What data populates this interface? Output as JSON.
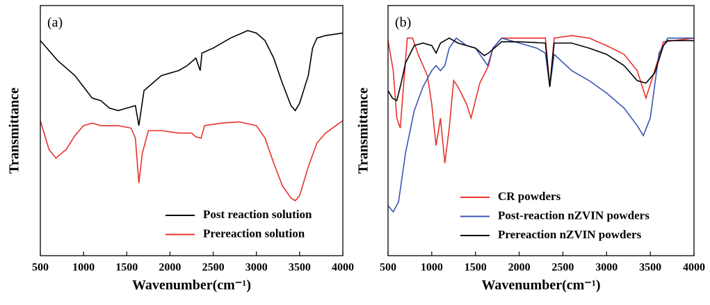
{
  "chart_data": [
    {
      "type": "line",
      "annotation": "(a)",
      "xlabel": "Wavenumber(cm⁻¹)",
      "ylabel": "Transmittance",
      "xlim": [
        500,
        4000
      ],
      "xticks": [
        500,
        1000,
        1500,
        2000,
        2500,
        3000,
        3500,
        4000
      ],
      "ylim": [
        0,
        100
      ],
      "legend": "lower right",
      "series": [
        {
          "name": "Post reaction solution",
          "color": "#000000",
          "x": [
            500,
            700,
            900,
            1000,
            1100,
            1200,
            1300,
            1400,
            1500,
            1600,
            1640,
            1700,
            1800,
            1900,
            2000,
            2100,
            2200,
            2300,
            2350,
            2370,
            2500,
            2700,
            2900,
            3000,
            3100,
            3200,
            3300,
            3400,
            3450,
            3500,
            3600,
            3650,
            3700,
            3800,
            4000
          ],
          "values": [
            86,
            78,
            72,
            67.5,
            63,
            62,
            59,
            58,
            59,
            60,
            52,
            66,
            69,
            72,
            73,
            74,
            76,
            79,
            74,
            81,
            83,
            87,
            90,
            89,
            86,
            79,
            69,
            60,
            58,
            61,
            72,
            83,
            87,
            88,
            89
          ]
        },
        {
          "name": "Prereaction solution",
          "color": "#e8312a",
          "x": [
            500,
            600,
            680,
            800,
            900,
            1000,
            1100,
            1200,
            1400,
            1550,
            1600,
            1640,
            1680,
            1750,
            1900,
            2100,
            2250,
            2300,
            2360,
            2400,
            2600,
            2800,
            3000,
            3100,
            3200,
            3300,
            3400,
            3450,
            3500,
            3600,
            3700,
            3800,
            4000
          ],
          "values": [
            54,
            42.5,
            39,
            42.5,
            48,
            52,
            53,
            52,
            52,
            51,
            47,
            29,
            41,
            50,
            50,
            49,
            49,
            47.5,
            47,
            52,
            53,
            53.5,
            52,
            47,
            37,
            28,
            23,
            22,
            24,
            35.5,
            45,
            49,
            54
          ]
        }
      ]
    },
    {
      "type": "line",
      "annotation": "(b)",
      "xlabel": "Wavenumber(cm⁻¹)",
      "ylabel": "Transmittance",
      "xlim": [
        500,
        4000
      ],
      "xticks": [
        500,
        1000,
        1500,
        2000,
        2500,
        3000,
        3500,
        4000
      ],
      "ylim": [
        0,
        100
      ],
      "legend": "lower center",
      "series": [
        {
          "name": "CR powders",
          "color": "#e8312a",
          "x": [
            500,
            560,
            600,
            640,
            680,
            720,
            780,
            850,
            950,
            1000,
            1050,
            1100,
            1150,
            1200,
            1250,
            1300,
            1400,
            1450,
            1550,
            1650,
            1700,
            1800,
            2000,
            2300,
            2350,
            2400,
            2600,
            2800,
            3000,
            3200,
            3350,
            3450,
            3550,
            3650,
            4000
          ],
          "values": [
            86,
            74,
            55,
            51,
            69,
            87,
            87,
            80,
            72,
            60.5,
            44,
            55,
            37,
            51,
            70,
            67.5,
            60.5,
            55,
            69,
            76,
            83,
            87,
            87,
            87,
            67.5,
            87,
            88,
            87,
            84,
            80.5,
            74,
            63,
            74,
            85.5,
            87
          ]
        },
        {
          "name": "Post-reaction nZVIN powders",
          "color": "#3a55b4",
          "x": [
            500,
            560,
            620,
            700,
            800,
            900,
            1000,
            1050,
            1100,
            1150,
            1200,
            1280,
            1400,
            1500,
            1640,
            1700,
            1800,
            2000,
            2200,
            2300,
            2350,
            2400,
            2600,
            2800,
            3000,
            3200,
            3350,
            3420,
            3500,
            3600,
            3700,
            4000
          ],
          "values": [
            20,
            17.5,
            21.5,
            41,
            58,
            67.5,
            74,
            76,
            74,
            76,
            83,
            87,
            84,
            83,
            76,
            83,
            87,
            85,
            83,
            81,
            67.5,
            80.5,
            74,
            70,
            65,
            59,
            52,
            48,
            55,
            81,
            87,
            87
          ]
        },
        {
          "name": "Prereaction nZVIN powders",
          "color": "#000000",
          "x": [
            500,
            550,
            600,
            650,
            700,
            800,
            900,
            1000,
            1050,
            1100,
            1200,
            1300,
            1500,
            1600,
            1650,
            1800,
            2000,
            2300,
            2350,
            2400,
            2600,
            2800,
            3000,
            3200,
            3350,
            3450,
            3550,
            3650,
            3700,
            4000
          ],
          "values": [
            66,
            63,
            62,
            69,
            77,
            84,
            85,
            84,
            81,
            85,
            87,
            85,
            83,
            80,
            81,
            85.5,
            85.5,
            85,
            67.5,
            85,
            85,
            83,
            80.5,
            76,
            70,
            69,
            73,
            84,
            86,
            86
          ]
        }
      ]
    }
  ]
}
